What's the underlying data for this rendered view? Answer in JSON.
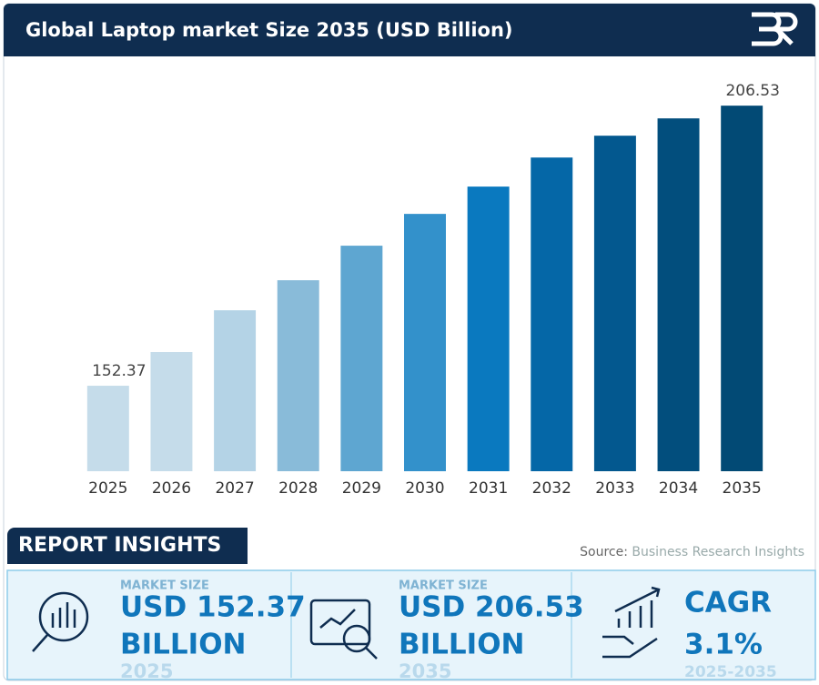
{
  "chart_data": {
    "type": "bar",
    "title": "Global Laptop market Size 2035 (USD Billion)",
    "categories": [
      "2025",
      "2026",
      "2027",
      "2028",
      "2029",
      "2030",
      "2031",
      "2032",
      "2033",
      "2034",
      "2035"
    ],
    "values": [
      152.37,
      158.88,
      166.96,
      172.77,
      179.45,
      185.6,
      190.88,
      196.5,
      200.72,
      204.07,
      206.53
    ],
    "value_labels": [
      "152.37",
      null,
      null,
      null,
      null,
      null,
      null,
      null,
      null,
      null,
      "206.53"
    ],
    "colors": [
      "#c5dcea",
      "#c5dcea",
      "#b4d3e6",
      "#89bbd9",
      "#5ea6d1",
      "#3391cb",
      "#0a79bf",
      "#0567a7",
      "#03588f",
      "#024e7d",
      "#024a75"
    ],
    "ylim": [
      135.84,
      215
    ],
    "grid": false
  },
  "insights": {
    "heading": "REPORT INSIGHTS",
    "source_label": "Source:",
    "source_text": "Business Research Insights",
    "cards": [
      {
        "label": "MARKET SIZE",
        "value": "USD 152.37",
        "unit": "BILLION",
        "year": "2025"
      },
      {
        "label": "MARKET SIZE",
        "value": "USD 206.53",
        "unit": "BILLION",
        "year": "2035"
      },
      {
        "label": null,
        "value": "CAGR",
        "unit": "3.1%",
        "year": "2025-2035"
      }
    ]
  }
}
